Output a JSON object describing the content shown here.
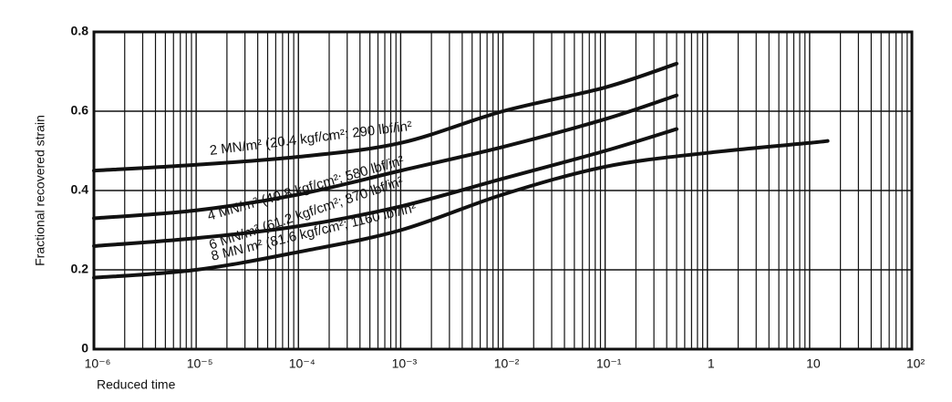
{
  "chart_data": {
    "type": "line",
    "xlabel": "Reduced time",
    "ylabel": "Fractional recovered strain",
    "xscale": "log",
    "grid": true,
    "xlim": [
      1e-06,
      100
    ],
    "ylim": [
      0,
      0.8
    ],
    "xticks": [
      {
        "value": 1e-06,
        "label": "10⁻⁶"
      },
      {
        "value": 1e-05,
        "label": "10⁻⁵"
      },
      {
        "value": 0.0001,
        "label": "10⁻⁴"
      },
      {
        "value": 0.001,
        "label": "10⁻³"
      },
      {
        "value": 0.01,
        "label": "10⁻²"
      },
      {
        "value": 0.1,
        "label": "10⁻¹"
      },
      1,
      10,
      {
        "value": 100,
        "label": "10²"
      }
    ],
    "yticks": [
      0,
      0.2,
      0.4,
      0.6,
      0.8
    ],
    "series": [
      {
        "name": "2 MN/m² (20.4 kgf/cm²; 290 lbf/in²",
        "color": "#111111",
        "x": [
          1e-06,
          1e-05,
          0.0001,
          0.001,
          0.01,
          0.1,
          0.5
        ],
        "values": [
          0.45,
          0.465,
          0.485,
          0.52,
          0.6,
          0.66,
          0.72
        ]
      },
      {
        "name": "4 MN/m² (40.8 kgf/cm²; 580 lbf/in²",
        "color": "#111111",
        "x": [
          1e-06,
          1e-05,
          0.0001,
          0.001,
          0.01,
          0.1,
          0.5
        ],
        "values": [
          0.33,
          0.35,
          0.39,
          0.45,
          0.51,
          0.58,
          0.64
        ]
      },
      {
        "name": "6 MN/m² (61.2 kgf/cm²; 870 lbf/in²",
        "color": "#111111",
        "x": [
          1e-06,
          1e-05,
          0.0001,
          0.001,
          0.01,
          0.1,
          0.5
        ],
        "values": [
          0.26,
          0.28,
          0.31,
          0.36,
          0.43,
          0.5,
          0.555
        ]
      },
      {
        "name": "8 MN/m² (81.6 kgf/cm²; 1160 lbf/in²",
        "color": "#111111",
        "x": [
          1e-06,
          1e-05,
          0.0001,
          0.001,
          0.01,
          0.1,
          1,
          10,
          15
        ],
        "values": [
          0.18,
          0.2,
          0.245,
          0.3,
          0.39,
          0.46,
          0.495,
          0.52,
          0.525
        ]
      }
    ]
  }
}
